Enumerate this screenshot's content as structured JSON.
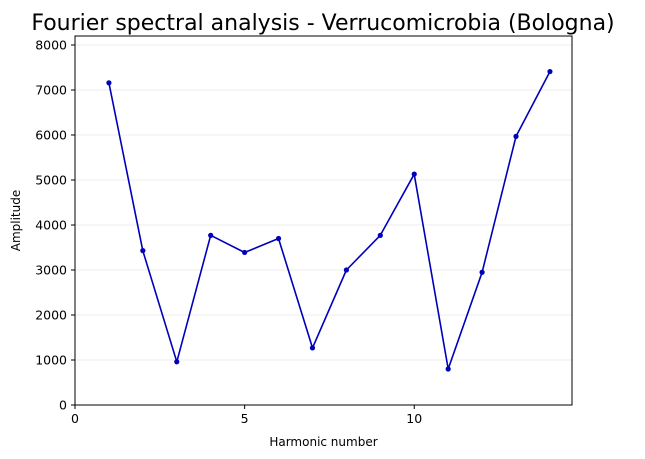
{
  "chart_data": {
    "type": "line",
    "title": "Fourier spectral analysis - Verrucomicrobia (Bologna)",
    "xlabel": "Harmonic number",
    "ylabel": "Amplitude",
    "xlim": [
      0,
      14.65
    ],
    "ylim": [
      0,
      8200
    ],
    "xticks": [
      0,
      5,
      10
    ],
    "yticks": [
      0,
      1000,
      2000,
      3000,
      4000,
      5000,
      6000,
      7000,
      8000
    ],
    "grid": "horizontal",
    "color": "#0000bb",
    "series": [
      {
        "x": [
          1,
          2,
          3,
          4,
          5,
          6,
          7,
          8,
          9,
          10,
          11,
          12,
          13,
          14
        ],
        "values": [
          7160,
          3430,
          960,
          3770,
          3390,
          3700,
          1270,
          3000,
          3770,
          5130,
          800,
          2950,
          5970,
          7410
        ]
      }
    ]
  }
}
